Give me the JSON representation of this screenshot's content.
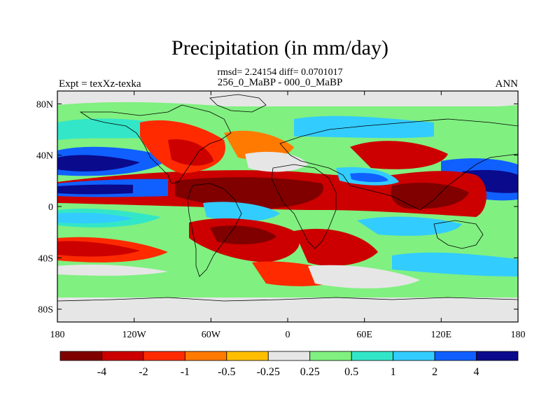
{
  "figure": {
    "title": "Precipitation (in mm/day)",
    "stats_line": "rmsd= 2.24154 diff= 0.0701017",
    "experiment_name": "256_0_MaBP - 000_0_MaBP",
    "left_label": "Expt = texXz-texka",
    "right_label": "ANN"
  },
  "map": {
    "projection": "cylindrical-equidistant",
    "lon_range": [
      -180,
      180
    ],
    "lat_range": [
      -90,
      90
    ],
    "x_tick_labels": [
      "180",
      "120W",
      "60W",
      "0",
      "60E",
      "120E",
      "180"
    ],
    "y_tick_labels": [
      "80N",
      "40N",
      "0",
      "40S",
      "80S"
    ],
    "x_tick_values": [
      -180,
      -120,
      -60,
      0,
      60,
      120,
      180
    ],
    "y_tick_values": [
      80,
      40,
      0,
      -40,
      -80
    ]
  },
  "colorbar": {
    "colors": [
      "#800000",
      "#cc0000",
      "#ff2a00",
      "#ff7a00",
      "#ffbf00",
      "#e6e6e6",
      "#80f080",
      "#33e6c8",
      "#33ccff",
      "#1060ff",
      "#0a0a8c"
    ],
    "labels": [
      "-4",
      "-2",
      "-1",
      "-0.5",
      "-0.25",
      "0.25",
      "0.5",
      "1",
      "2",
      "4"
    ]
  }
}
